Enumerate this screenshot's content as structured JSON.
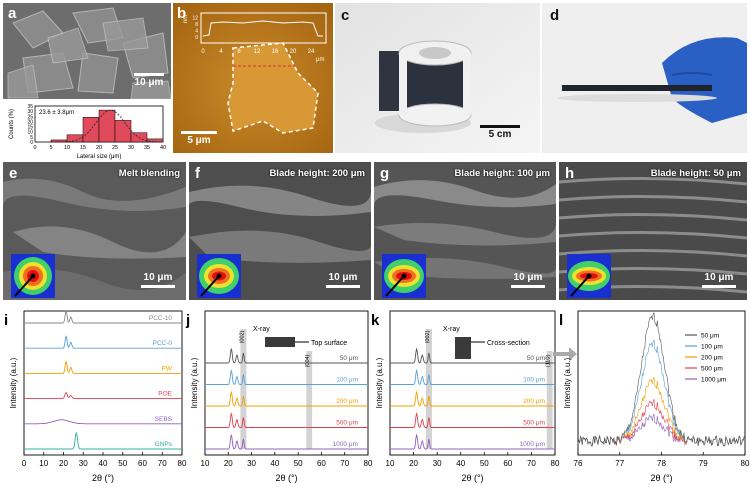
{
  "panel_labels": [
    "a",
    "b",
    "c",
    "d",
    "e",
    "f",
    "g",
    "h",
    "i",
    "j",
    "k",
    "l"
  ],
  "panel_a": {
    "scale": "10 μm",
    "histogram": {
      "type": "bar",
      "mean_label": "23.6 ± 3.8μm",
      "ylabel": "Counts (%)",
      "xlabel": "Lateral size (μm)",
      "xticks": [
        "0",
        "5",
        "10",
        "15",
        "20",
        "25",
        "30",
        "35",
        "40"
      ],
      "yticks": [
        "0",
        "5",
        "10",
        "15",
        "20",
        "25",
        "30",
        "35"
      ],
      "bin_centers": [
        7.5,
        12.5,
        17.5,
        22.5,
        27.5,
        32.5,
        37.5
      ],
      "values": [
        2,
        7,
        24,
        31,
        21,
        9,
        3
      ],
      "xlim": [
        0,
        40
      ],
      "ylim": [
        0,
        35
      ]
    }
  },
  "panel_b": {
    "scale": "5 μm",
    "profile_ylabel": "nm",
    "profile_yticks": [
      "0",
      "4",
      "8",
      "12"
    ],
    "profile_xticks": [
      "0",
      "4",
      "8",
      "12",
      "16",
      "20",
      "24"
    ],
    "profile_xunit": "μm"
  },
  "panel_c": {
    "scale": "5 cm"
  },
  "panel_e": {
    "title": "Melt blending",
    "scale": "10 μm"
  },
  "panel_f": {
    "title": "Blade height: 200 μm",
    "scale": "10 μm"
  },
  "panel_g": {
    "title": "Blade height: 100 μm",
    "scale": "10 μm"
  },
  "panel_h": {
    "title": "Blade height: 50 μm",
    "scale": "10 μm"
  },
  "chart_data": [
    {
      "panel": "i",
      "type": "line",
      "xlabel": "2θ (°)",
      "ylabel": "Intensity (a.u.)",
      "xlim": [
        0,
        80
      ],
      "xticks": [
        "0",
        "10",
        "20",
        "30",
        "40",
        "50",
        "60",
        "70",
        "80"
      ],
      "series": [
        {
          "name": "PCC-10",
          "color": "#8a8a8a"
        },
        {
          "name": "PCC-0",
          "color": "#5aa0d8"
        },
        {
          "name": "PW",
          "color": "#f0a000"
        },
        {
          "name": "POE",
          "color": "#e04050"
        },
        {
          "name": "SEBS",
          "color": "#9060c0"
        },
        {
          "name": "GNPs",
          "color": "#30b0a0"
        }
      ]
    },
    {
      "panel": "j",
      "type": "line",
      "xlabel": "2θ (°)",
      "ylabel": "Intensity (a.u.)",
      "xlim": [
        10,
        80
      ],
      "xticks": [
        "10",
        "20",
        "30",
        "40",
        "50",
        "60",
        "70",
        "80"
      ],
      "annotations": [
        "X-ray",
        "Top surface",
        "(002)",
        "(004)"
      ],
      "series": [
        {
          "name": "50 μm",
          "color": "#555555"
        },
        {
          "name": "100 μm",
          "color": "#5aa0d8"
        },
        {
          "name": "200 μm",
          "color": "#f0a000"
        },
        {
          "name": "500 μm",
          "color": "#e04050"
        },
        {
          "name": "1000 μm",
          "color": "#9060c0"
        }
      ]
    },
    {
      "panel": "k",
      "type": "line",
      "xlabel": "2θ (°)",
      "ylabel": "Intensity (a.u.)",
      "xlim": [
        10,
        80
      ],
      "xticks": [
        "10",
        "20",
        "30",
        "40",
        "50",
        "60",
        "70",
        "80"
      ],
      "annotations": [
        "X-ray",
        "Cross-section",
        "(002)",
        "(110)"
      ],
      "series": [
        {
          "name": "50 μm",
          "color": "#555555"
        },
        {
          "name": "100 μm",
          "color": "#5aa0d8"
        },
        {
          "name": "200 μm",
          "color": "#f0a000"
        },
        {
          "name": "500 μm",
          "color": "#e04050"
        },
        {
          "name": "1000 μm",
          "color": "#9060c0"
        }
      ]
    },
    {
      "panel": "l",
      "type": "line",
      "xlabel": "2θ (°)",
      "ylabel": "Intensity (a.u.)",
      "xlim": [
        76,
        80
      ],
      "xticks": [
        "76",
        "77",
        "78",
        "79",
        "80"
      ],
      "series": [
        {
          "name": "50 μm",
          "color": "#555555",
          "peak_x": 77.8,
          "peak_height": 1.0
        },
        {
          "name": "100 μm",
          "color": "#5aa0d8",
          "peak_x": 77.8,
          "peak_height": 0.78
        },
        {
          "name": "200 μm",
          "color": "#f0a000",
          "peak_x": 77.8,
          "peak_height": 0.48
        },
        {
          "name": "500 μm",
          "color": "#e04050",
          "peak_x": 77.8,
          "peak_height": 0.3
        },
        {
          "name": "1000 μm",
          "color": "#9060c0",
          "peak_x": 77.8,
          "peak_height": 0.18
        }
      ]
    }
  ]
}
